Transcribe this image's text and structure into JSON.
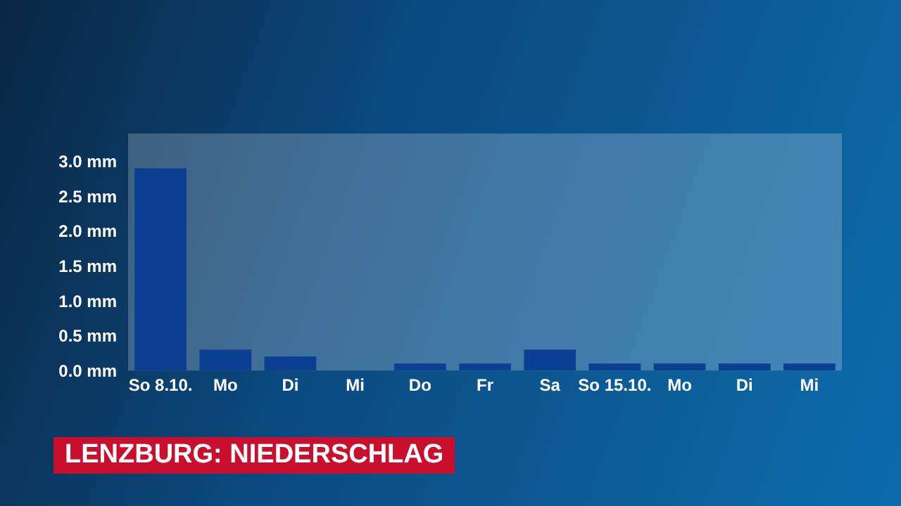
{
  "chart_data": {
    "type": "bar",
    "title": "LENZBURG: NIEDERSCHLAG",
    "categories": [
      "So 8.10.",
      "Mo",
      "Di",
      "Mi",
      "Do",
      "Fr",
      "Sa",
      "So 15.10.",
      "Mo",
      "Di",
      "Mi"
    ],
    "values": [
      2.9,
      0.3,
      0.2,
      0,
      0.1,
      0.1,
      0.3,
      0.1,
      0.1,
      0.1,
      0.1
    ],
    "color": "#0b3f91",
    "ylim": [
      0,
      3.4
    ],
    "yticks": [
      {
        "value": 0,
        "label": "0.0 mm"
      },
      {
        "value": 0.5,
        "label": "0.5 mm"
      },
      {
        "value": 1,
        "label": "1.0 mm"
      },
      {
        "value": 1.5,
        "label": "1.5 mm"
      },
      {
        "value": 2,
        "label": "2.0 mm"
      },
      {
        "value": 2.5,
        "label": "2.5 mm"
      },
      {
        "value": 3,
        "label": "3.0 mm"
      }
    ],
    "grid": false,
    "legend": false
  }
}
